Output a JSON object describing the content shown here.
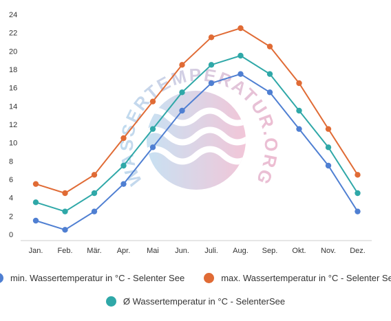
{
  "chart_data": {
    "type": "line",
    "categories": [
      "Jan.",
      "Feb.",
      "Mär.",
      "Apr.",
      "Mai",
      "Jun.",
      "Juli.",
      "Aug.",
      "Sep.",
      "Okt.",
      "Nov.",
      "Dez."
    ],
    "ylim": [
      0,
      24
    ],
    "yticks": [
      0,
      2,
      4,
      6,
      8,
      10,
      12,
      14,
      16,
      18,
      20,
      22,
      24
    ],
    "grid": false,
    "legend_position": "bottom",
    "series": [
      {
        "name": "min. Wassertemperatur in °C - Selenter See",
        "color": "#4f7fd2",
        "values": [
          1.5,
          0.5,
          2.5,
          5.5,
          9.5,
          13.5,
          16.5,
          17.5,
          15.5,
          11.5,
          7.5,
          2.5
        ]
      },
      {
        "name": "max. Wassertemperatur in °C - Selenter See",
        "color": "#e06b35",
        "values": [
          5.5,
          4.5,
          6.5,
          10.5,
          14.5,
          18.5,
          21.5,
          22.5,
          20.5,
          16.5,
          11.5,
          6.5
        ]
      },
      {
        "name": "Ø Wassertemperatur in °C - SelenterSee",
        "color": "#2fa8a8",
        "values": [
          3.5,
          2.5,
          4.5,
          7.5,
          11.5,
          15.5,
          18.5,
          19.5,
          17.5,
          13.5,
          9.5,
          4.5
        ]
      }
    ]
  },
  "watermark": {
    "text": "WASSERTEMPERATUR.ORG",
    "gradient_from": "#a9d1ec",
    "gradient_to": "#eaa6c2"
  }
}
